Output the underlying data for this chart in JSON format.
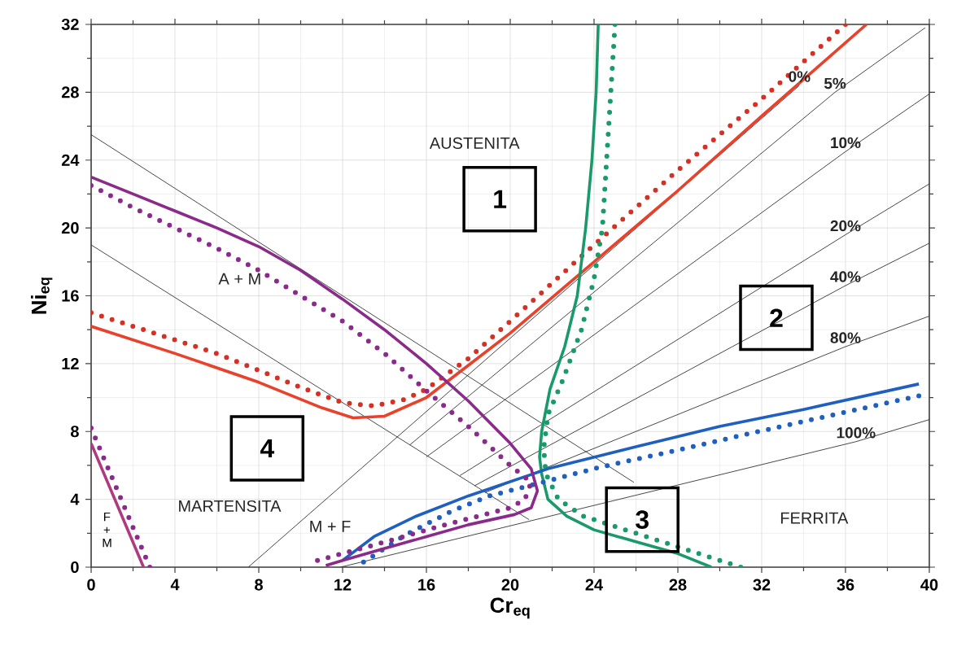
{
  "chart_data": {
    "type": "line",
    "xlabel": "Cr$_{eq}$",
    "ylabel": "Ni$_{eq}$",
    "xlim": [
      0,
      40
    ],
    "ylim": [
      0,
      32
    ],
    "xticks": [
      0,
      4,
      8,
      12,
      16,
      20,
      24,
      28,
      32,
      36,
      40
    ],
    "yticks": [
      0,
      4,
      8,
      12,
      16,
      20,
      24,
      28,
      32
    ],
    "grid": true,
    "series": [
      {
        "color": "#333333",
        "line_style": "solid",
        "x": [
          0,
          25.9
        ],
        "values": [
          25.5,
          5.0
        ]
      },
      {
        "color": "#333333",
        "line_style": "solid",
        "x": [
          0,
          20.9
        ],
        "values": [
          19,
          2.8
        ]
      },
      {
        "name": "0%",
        "color": "#333333",
        "line_style": "solid",
        "x": [
          7.5,
          33.8
        ],
        "values": [
          0,
          28.4
        ]
      },
      {
        "name": "5%",
        "color": "#333333",
        "line_style": "solid",
        "x": [
          15.2,
          35.5,
          39.8
        ],
        "values": [
          7.2,
          28.0,
          31.8
        ]
      },
      {
        "name": "10%",
        "color": "#333333",
        "line_style": "solid",
        "x": [
          16.0,
          36.0,
          40
        ],
        "values": [
          6.5,
          24.5,
          27.9
        ]
      },
      {
        "name": "20%",
        "color": "#333333",
        "line_style": "solid",
        "x": [
          17.6,
          36.0,
          40
        ],
        "values": [
          5.4,
          19.6,
          22.6
        ]
      },
      {
        "name": "40%",
        "color": "#333333",
        "line_style": "solid",
        "x": [
          18.3,
          36.0,
          40
        ],
        "values": [
          4.8,
          16.6,
          19.1
        ]
      },
      {
        "name": "80%",
        "color": "#333333",
        "line_style": "solid",
        "x": [
          18.8,
          36.0,
          40
        ],
        "values": [
          4.4,
          13.0,
          14.8
        ]
      },
      {
        "name": "100%",
        "color": "#333333",
        "line_style": "solid",
        "x": [
          11.9,
          36.5,
          40
        ],
        "values": [
          0,
          7.4,
          8.7
        ]
      },
      {
        "color": "#e8412c",
        "line_style": "solid",
        "x": [
          0,
          4,
          8,
          11,
          12.5,
          14,
          16,
          18,
          20,
          24,
          28,
          32,
          37
        ],
        "values": [
          14.2,
          12.6,
          10.9,
          9.4,
          8.8,
          8.9,
          10,
          11.9,
          13.8,
          18,
          22.2,
          26.6,
          32
        ]
      },
      {
        "color": "#d63024",
        "line_style": "dotted",
        "x": [
          0,
          2,
          4,
          6,
          8,
          10,
          12,
          13.5,
          15,
          16,
          18,
          20,
          24,
          28,
          32,
          36
        ],
        "values": [
          15,
          14.2,
          13.4,
          12.6,
          11.6,
          10.6,
          9.7,
          9.5,
          9.9,
          10.5,
          12.3,
          14.5,
          19,
          23.4,
          27.6,
          32
        ]
      },
      {
        "color": "#1a9a6a",
        "line_style": "solid",
        "x": [
          24.2,
          24.1,
          23.9,
          23.6,
          23.2,
          22.6,
          21.9,
          21.5,
          21.4,
          21.5,
          21.8,
          22.7,
          24,
          26,
          28,
          29.6
        ],
        "values": [
          32,
          28,
          24,
          20,
          16,
          13,
          10.5,
          8,
          6.5,
          5.5,
          4,
          3,
          2.2,
          1.5,
          0.8,
          0
        ]
      },
      {
        "color": "#1a9a6a",
        "line_style": "dotted",
        "x": [
          25,
          24.8,
          24.6,
          24.4,
          24,
          23.4,
          22.5,
          21.8,
          21.6,
          21.7,
          22.3,
          23.5,
          25,
          27,
          29,
          31
        ],
        "values": [
          32,
          28,
          24,
          20,
          17,
          14,
          11,
          9,
          7,
          5.5,
          4,
          3,
          2.4,
          1.6,
          0.8,
          0
        ]
      },
      {
        "color": "#1f5fc0",
        "line_style": "solid",
        "x": [
          12,
          13.5,
          15.5,
          18,
          21.8,
          26,
          30,
          34,
          39.5
        ],
        "values": [
          0.4,
          1.8,
          3.0,
          4.2,
          5.8,
          7.1,
          8.3,
          9.3,
          10.8
        ]
      },
      {
        "color": "#1f5fc0",
        "line_style": "dotted",
        "x": [
          13,
          15,
          17.2,
          19,
          20.9,
          24.3,
          28,
          31.5,
          35.5,
          39.5
        ],
        "values": [
          0.3,
          1.9,
          3.3,
          4.2,
          4.8,
          5.9,
          6.9,
          7.9,
          9.0,
          10.1
        ]
      },
      {
        "color": "#8a2a8a",
        "line_style": "solid",
        "x": [
          0,
          2,
          4,
          6,
          8,
          10,
          12,
          14,
          16,
          18,
          20,
          21,
          21.3,
          21,
          20.2,
          18,
          16,
          14,
          12,
          11.2
        ],
        "values": [
          23,
          22,
          21,
          20,
          18.9,
          17.5,
          15.8,
          14,
          12,
          9.8,
          7.3,
          5.8,
          4.5,
          3.5,
          3.1,
          2.5,
          1.8,
          1.1,
          0.4,
          0.1
        ]
      },
      {
        "color": "#8a2a8a",
        "line_style": "dotted",
        "x": [
          0,
          2,
          4,
          6,
          8,
          10,
          12,
          14,
          16,
          18,
          20,
          21,
          20.7,
          20,
          16.9,
          13.2,
          10.8
        ],
        "values": [
          22.5,
          21.2,
          20,
          18.8,
          17.5,
          16,
          14.5,
          12.6,
          10.4,
          8.3,
          6,
          5,
          4,
          3.5,
          2.5,
          1.2,
          0.4
        ]
      },
      {
        "color": "#b03a80",
        "line_style": "solid",
        "x": [
          0,
          2.5
        ],
        "values": [
          7.3,
          0
        ]
      },
      {
        "color": "#8a2a8a",
        "line_style": "dotted",
        "x": [
          0,
          2.8
        ],
        "values": [
          8.2,
          0
        ]
      }
    ],
    "annotations": [
      "AUSTENITA",
      "1",
      "2",
      "3",
      "4",
      "MARTENSITA",
      "A + M",
      "M + F",
      "F + M",
      "FERRITA"
    ]
  }
}
